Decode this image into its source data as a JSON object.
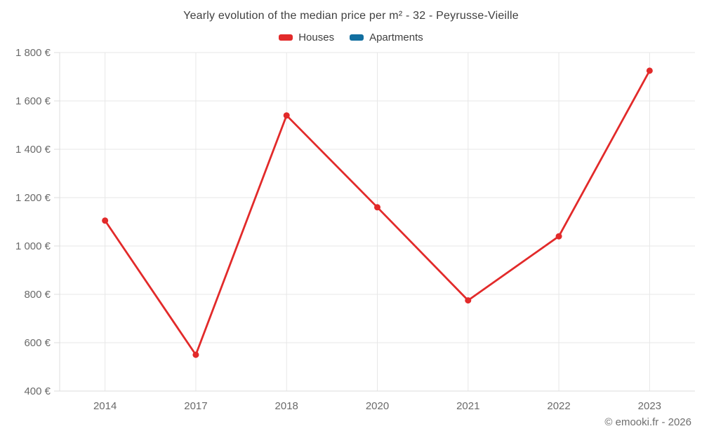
{
  "title": "Yearly evolution of the median price per m² - 32 - Peyrusse-Vieille",
  "legend": [
    {
      "label": "Houses",
      "color": "#e22a2a"
    },
    {
      "label": "Apartments",
      "color": "#126fa0"
    }
  ],
  "footer": "© emooki.fr - 2026",
  "chart_data": {
    "type": "line",
    "title": "Yearly evolution of the median price per m² - 32 - Peyrusse-Vieille",
    "categories": [
      "2014",
      "2017",
      "2018",
      "2020",
      "2021",
      "2022",
      "2023"
    ],
    "series": [
      {
        "name": "Houses",
        "color": "#e22a2a",
        "values": [
          1105,
          550,
          1540,
          1160,
          775,
          1040,
          1725
        ]
      },
      {
        "name": "Apartments",
        "color": "#126fa0",
        "values": []
      }
    ],
    "xlabel": "",
    "ylabel": "",
    "ylim": [
      400,
      1800
    ],
    "ytick_step": 200,
    "ytick_labels": [
      "400 €",
      "600 €",
      "800 €",
      "1 000 €",
      "1 200 €",
      "1 400 €",
      "1 600 €",
      "1 800 €"
    ],
    "grid": true,
    "legend_position": "top",
    "colors": {
      "grid_line": "#e7e7e7",
      "axis_line": "#dedede",
      "tick_label": "#6a6a6a"
    }
  }
}
